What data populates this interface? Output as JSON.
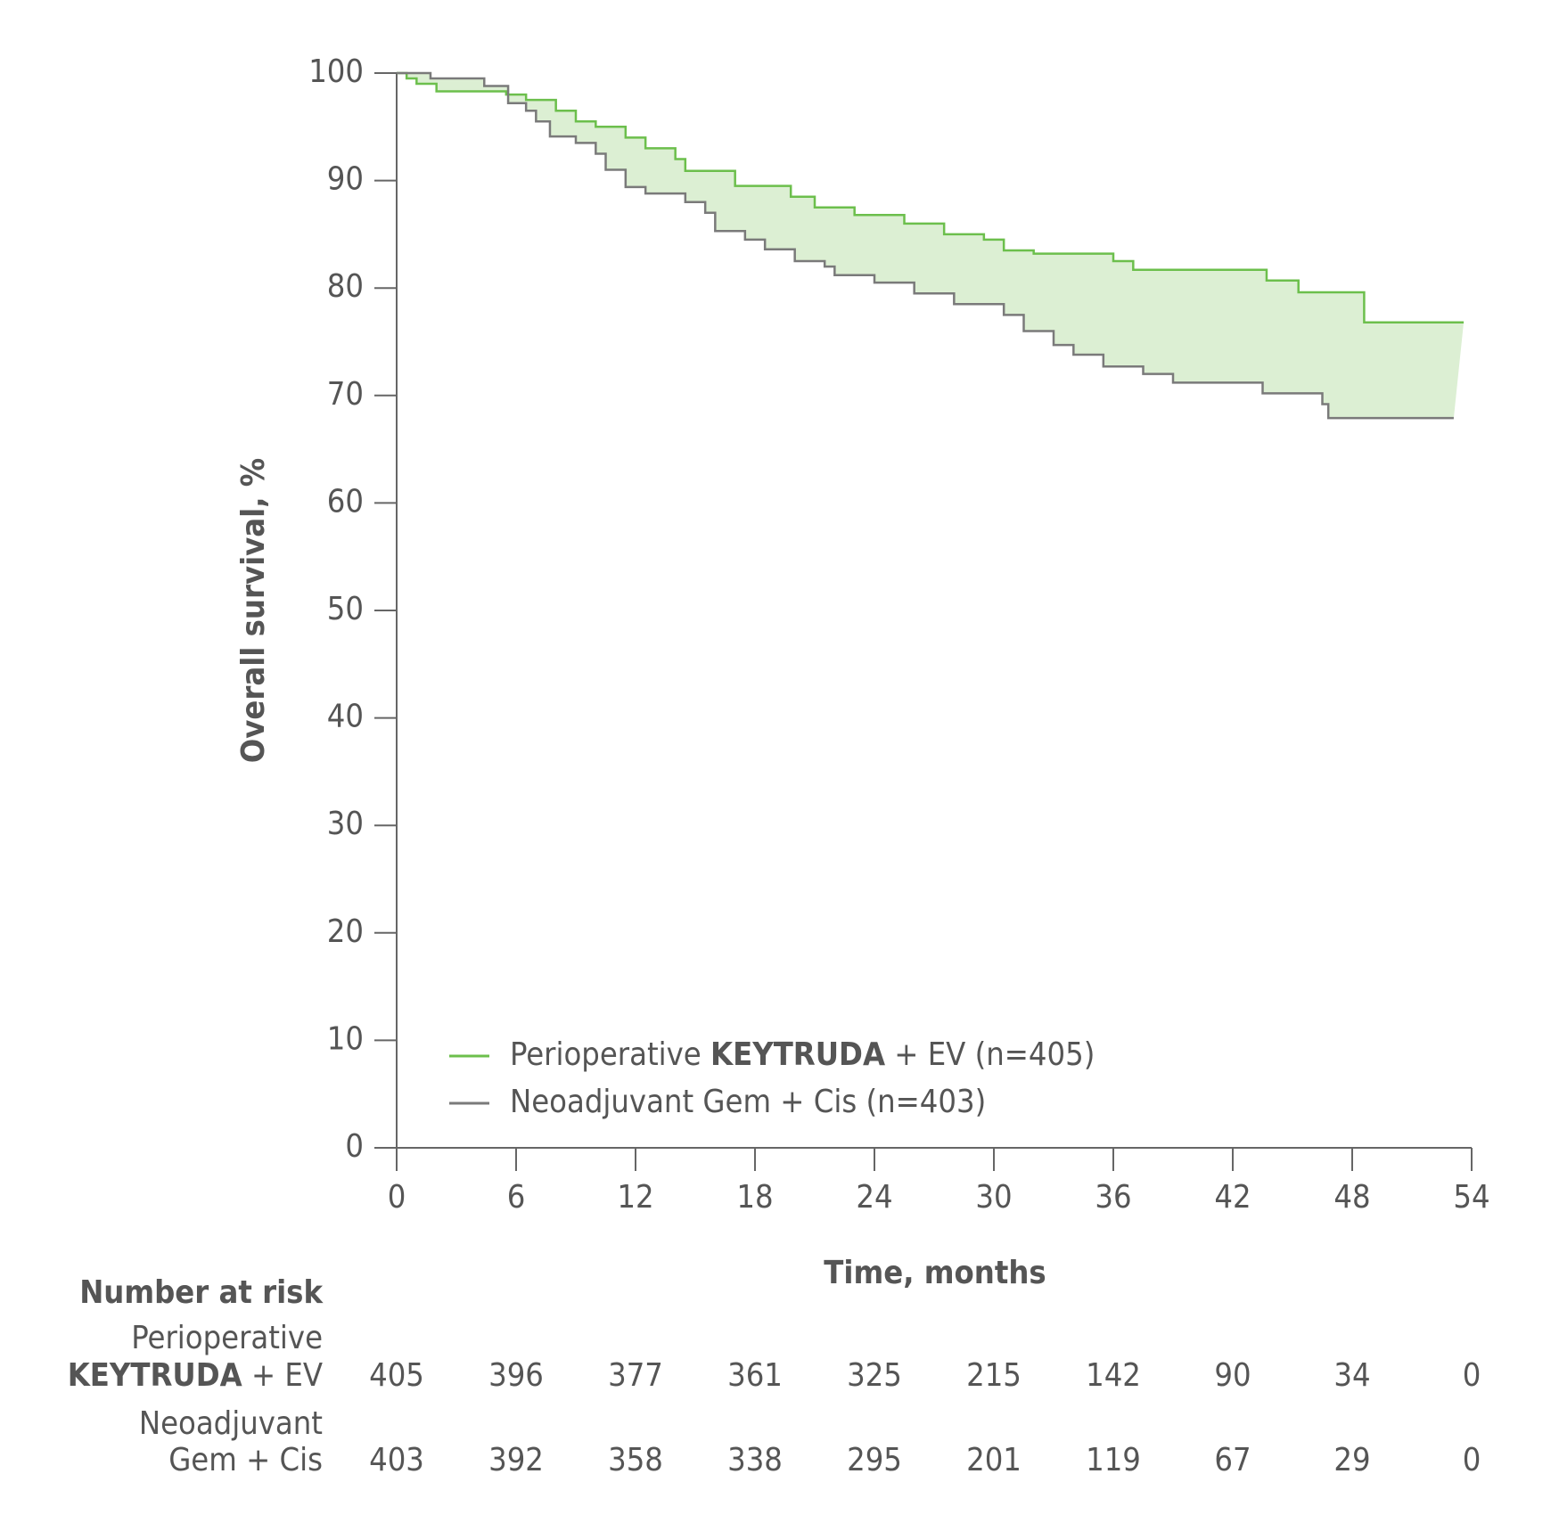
{
  "chart_data": {
    "type": "km",
    "y_label": "Overall survival, %",
    "x_label": "Time, months",
    "xlim": [
      0,
      54
    ],
    "ylim": [
      0,
      100
    ],
    "xticks": [
      0,
      6,
      12,
      18,
      24,
      30,
      36,
      42,
      48,
      54
    ],
    "yticks": [
      0,
      10,
      20,
      30,
      40,
      50,
      60,
      70,
      80,
      90,
      100
    ],
    "band_color": "#dcefd3",
    "series": [
      {
        "name": "Perioperative KEYTRUDA + EV (n=405)",
        "bold": "KEYTRUDA",
        "color": "#6cbf4c",
        "text_color": "#2e6b34",
        "x": [
          0,
          0.5,
          1,
          2,
          5.5,
          6.5,
          8,
          9,
          10,
          11.5,
          12.5,
          14,
          14.5,
          17,
          19.8,
          21,
          23,
          25.5,
          27.5,
          29.5,
          30.5,
          32,
          36,
          37,
          43.7,
          45.3,
          48.6,
          53.6
        ],
        "values": [
          100,
          99.5,
          99,
          98.3,
          98,
          97.5,
          96.5,
          95.5,
          95,
          94,
          93,
          92,
          90.9,
          89.5,
          88.5,
          87.5,
          86.8,
          86,
          85,
          84.5,
          83.5,
          83.2,
          82.5,
          81.7,
          80.7,
          79.6,
          76.8,
          76.8
        ]
      },
      {
        "name": "Neoadjuvant Gem + Cis (n=403)",
        "color": "#7a7a7a",
        "text_color": "#555555",
        "x": [
          0,
          1.7,
          4.4,
          5.6,
          6.5,
          7,
          7.7,
          9,
          10,
          10.5,
          11.5,
          12.5,
          14.5,
          15.5,
          16,
          17.5,
          18.5,
          20,
          21.5,
          22,
          24,
          26,
          28,
          30.5,
          31.5,
          33,
          34,
          35.5,
          37.5,
          39,
          43.5,
          46.5,
          46.8,
          53.1
        ],
        "values": [
          100,
          99.5,
          98.8,
          97.2,
          96.5,
          95.5,
          94.1,
          93.5,
          92.5,
          91,
          89.4,
          88.8,
          88,
          87,
          85.3,
          84.5,
          83.6,
          82.5,
          82,
          81.2,
          80.5,
          79.5,
          78.5,
          77.5,
          76,
          74.7,
          73.8,
          72.7,
          72,
          71.2,
          70.2,
          69.2,
          67.9,
          67.9
        ]
      }
    ],
    "risk_table": {
      "title": "Number at risk",
      "rows": [
        {
          "label": [
            "Perioperative",
            "KEYTRUDA + EV"
          ],
          "bold": "KEYTRUDA",
          "color": "#2e6b34",
          "values": [
            405,
            396,
            377,
            361,
            325,
            215,
            142,
            90,
            34,
            0
          ]
        },
        {
          "label": [
            "Neoadjuvant",
            "Gem + Cis"
          ],
          "color": "#555555",
          "values": [
            403,
            392,
            358,
            338,
            295,
            201,
            119,
            67,
            29,
            0
          ]
        }
      ]
    }
  }
}
